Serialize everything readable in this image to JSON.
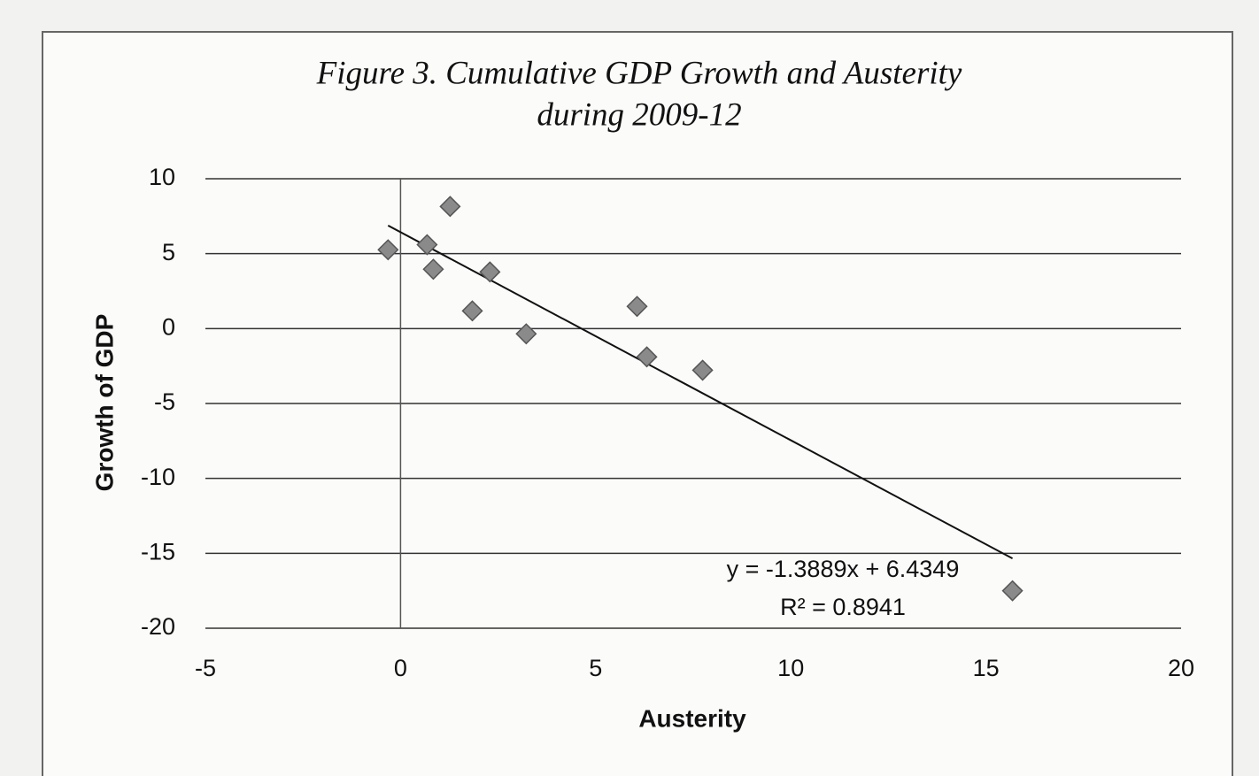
{
  "chart_data": {
    "type": "scatter",
    "title": [
      "Figure 3. Cumulative GDP Growth and Austerity",
      "during 2009-12"
    ],
    "x_label": "Austerity",
    "y_label": "Growth of GDP",
    "x": [
      -0.32,
      1.27,
      0.68,
      0.84,
      2.29,
      1.84,
      3.22,
      6.06,
      6.31,
      7.74,
      15.68
    ],
    "values": [
      5.26,
      8.15,
      5.6,
      3.96,
      3.78,
      1.18,
      -0.35,
      1.48,
      -1.89,
      -2.78,
      -17.5
    ],
    "color": "#8a8a8a",
    "xlim": [
      -5,
      20
    ],
    "xticks": [
      -5,
      0,
      5,
      10,
      15,
      20
    ],
    "ylim": [
      -20,
      10
    ],
    "yticks": [
      -20,
      -15,
      -10,
      -5,
      0,
      5,
      10
    ],
    "grid": true,
    "trendline": {
      "slope": -1.3889,
      "intercept": 6.4349,
      "label": "y = -1.3889x + 6.4349",
      "r2_label": "R² = 0.8941"
    }
  }
}
